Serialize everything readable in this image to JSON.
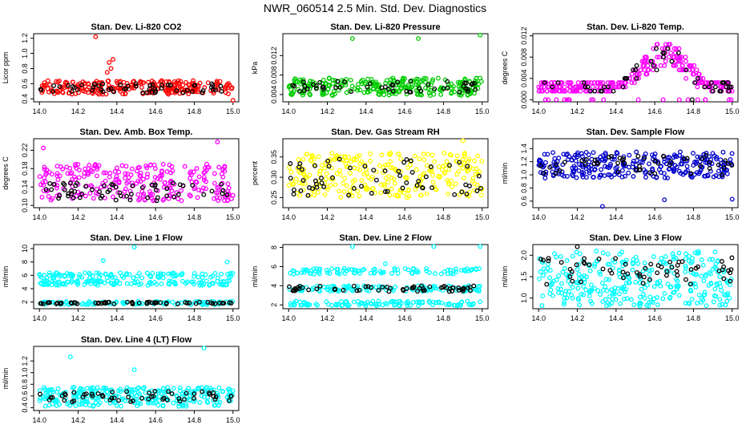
{
  "title": "NWR_060514  2.5 Min. Std. Dev. Diagnostics",
  "chart_data": [
    {
      "type": "scatter",
      "title": "Stan. Dev. Li-820 CO2",
      "ylabel": "Licor ppm",
      "xlim": [
        13.97,
        15.03
      ],
      "ylim": [
        0.36,
        1.26
      ],
      "xticks": [
        "14.0",
        "14.2",
        "14.4",
        "14.6",
        "14.8",
        "15.0"
      ],
      "yticks": [
        "0.4",
        "0.6",
        "0.8",
        "1.0",
        "1.2"
      ],
      "colors": {
        "main": "#ff0000",
        "ref": "#000000"
      },
      "series": [
        {
          "color": "#ff0000",
          "band_low": 0.46,
          "band_high": 0.64,
          "count": 240
        },
        {
          "color": "#000000",
          "band_low": 0.48,
          "band_high": 0.6,
          "count": 55
        }
      ],
      "outliers": [
        {
          "x": 14.29,
          "y": 1.22,
          "color": "#ff0000"
        },
        {
          "x": 14.38,
          "y": 0.92,
          "color": "#ff0000"
        },
        {
          "x": 14.36,
          "y": 0.88,
          "color": "#ff0000"
        },
        {
          "x": 14.37,
          "y": 0.8,
          "color": "#ff0000"
        },
        {
          "x": 14.35,
          "y": 0.75,
          "color": "#ff0000"
        },
        {
          "x": 15.0,
          "y": 0.38,
          "color": "#ff0000"
        }
      ]
    },
    {
      "type": "scatter",
      "title": "Stan. Dev. Li-820 Pressure",
      "ylabel": "kPa",
      "xlim": [
        13.97,
        15.03
      ],
      "ylim": [
        0.0025,
        0.0165
      ],
      "xticks": [
        "14.0",
        "14.2",
        "14.4",
        "14.6",
        "14.8",
        "15.0"
      ],
      "yticks": [
        "0.004",
        "0.008",
        "0.012"
      ],
      "colors": {
        "main": "#00cc00",
        "ref": "#000000"
      },
      "series": [
        {
          "color": "#00cc00",
          "band_low": 0.0038,
          "band_high": 0.0075,
          "count": 260
        },
        {
          "color": "#000000",
          "band_low": 0.0045,
          "band_high": 0.0068,
          "count": 50
        }
      ],
      "outliers": [
        {
          "x": 14.33,
          "y": 0.0155,
          "color": "#00cc00"
        },
        {
          "x": 14.67,
          "y": 0.0155,
          "color": "#00cc00"
        },
        {
          "x": 14.99,
          "y": 0.0162,
          "color": "#00cc00"
        }
      ]
    },
    {
      "type": "scatter",
      "title": "Stan. Dev. Li-820 Temp.",
      "ylabel": "degrees C",
      "xlim": [
        13.97,
        15.03
      ],
      "ylim": [
        -0.0004,
        0.0124
      ],
      "xticks": [
        "14.0",
        "14.2",
        "14.4",
        "14.6",
        "14.8",
        "15.0"
      ],
      "yticks": [
        "0.000",
        "0.004",
        "0.008",
        "0.012"
      ],
      "colors": {
        "main": "#ff00ff",
        "ref": "#000000"
      },
      "series": [
        {
          "color": "#ff00ff",
          "profile": "hump",
          "count": 300
        },
        {
          "color": "#000000",
          "profile": "hump",
          "count": 50
        }
      ],
      "outliers": []
    },
    {
      "type": "scatter",
      "title": "Stan. Dev. Amb. Box Temp.",
      "ylabel": "degrees C",
      "xlim": [
        13.97,
        15.03
      ],
      "ylim": [
        0.095,
        0.245
      ],
      "xticks": [
        "14.0",
        "14.2",
        "14.4",
        "14.6",
        "14.8",
        "15.0"
      ],
      "yticks": [
        "0.10",
        "0.14",
        "0.18",
        "0.22"
      ],
      "colors": {
        "main": "#ff00ff",
        "ref": "#000000"
      },
      "series": [
        {
          "color": "#ff00ff",
          "band_low": 0.11,
          "band_high": 0.19,
          "count": 260
        },
        {
          "color": "#000000",
          "band_low": 0.11,
          "band_high": 0.15,
          "count": 60
        }
      ],
      "outliers": [
        {
          "x": 14.92,
          "y": 0.238,
          "color": "#ff00ff"
        },
        {
          "x": 14.02,
          "y": 0.225,
          "color": "#ff00ff"
        }
      ]
    },
    {
      "type": "scatter",
      "title": "Stan. Dev. Gas Stream RH",
      "ylabel": "percent",
      "xlim": [
        13.97,
        15.03
      ],
      "ylim": [
        0.225,
        0.395
      ],
      "xticks": [
        "14.0",
        "14.2",
        "14.4",
        "14.6",
        "14.8",
        "15.0"
      ],
      "yticks": [
        "0.25",
        "0.30",
        "0.35"
      ],
      "colors": {
        "main": "#ffff00",
        "ref": "#000000"
      },
      "series": [
        {
          "color": "#ffff00",
          "band_low": 0.25,
          "band_high": 0.36,
          "count": 280
        },
        {
          "color": "#000000",
          "band_low": 0.255,
          "band_high": 0.345,
          "count": 60
        }
      ],
      "outliers": [
        {
          "x": 14.9,
          "y": 0.39,
          "color": "#ffff00"
        }
      ]
    },
    {
      "type": "scatter",
      "title": "Stan. Dev. Sample Flow",
      "ylabel": "ml/min",
      "xlim": [
        13.97,
        15.03
      ],
      "ylim": [
        0.5,
        1.55
      ],
      "xticks": [
        "14.0",
        "14.2",
        "14.4",
        "14.6",
        "14.8",
        "15.0"
      ],
      "yticks": [
        "0.6",
        "0.8",
        "1.0",
        "1.2",
        "1.4"
      ],
      "colors": {
        "main": "#0000cc",
        "ref": "#000000"
      },
      "series": [
        {
          "color": "#0000cc",
          "band_low": 0.95,
          "band_high": 1.35,
          "count": 280
        },
        {
          "color": "#000000",
          "band_low": 1.0,
          "band_high": 1.3,
          "count": 50
        }
      ],
      "outliers": [
        {
          "x": 14.33,
          "y": 0.52,
          "color": "#0000cc"
        },
        {
          "x": 14.65,
          "y": 0.62,
          "color": "#0000cc"
        },
        {
          "x": 15.0,
          "y": 0.63,
          "color": "#0000cc"
        }
      ]
    },
    {
      "type": "scatter",
      "title": "Stan. Dev. Line 1 Flow",
      "ylabel": "ml/min",
      "xlim": [
        13.97,
        15.03
      ],
      "ylim": [
        1.0,
        10.6
      ],
      "xticks": [
        "14.0",
        "14.2",
        "14.4",
        "14.6",
        "14.8",
        "15.0"
      ],
      "yticks": [
        "2",
        "4",
        "6",
        "8",
        "10"
      ],
      "colors": {
        "main": "#00ffff",
        "ref": "#000000"
      },
      "series": [
        {
          "color": "#00ffff",
          "bands": [
            [
              1.6,
              2.1
            ],
            [
              4.5,
              5.2
            ],
            [
              5.6,
              6.4
            ]
          ],
          "count": 320
        },
        {
          "color": "#000000",
          "band_low": 1.7,
          "band_high": 2.0,
          "count": 60
        }
      ],
      "outliers": [
        {
          "x": 14.49,
          "y": 10.2,
          "color": "#00ffff"
        },
        {
          "x": 14.97,
          "y": 8.0,
          "color": "#00ffff"
        },
        {
          "x": 14.33,
          "y": 8.2,
          "color": "#00ffff"
        }
      ]
    },
    {
      "type": "scatter",
      "title": "Stan. Dev. Line 2 Flow",
      "ylabel": "ml/min",
      "xlim": [
        13.97,
        15.03
      ],
      "ylim": [
        1.6,
        8.3
      ],
      "xticks": [
        "14.0",
        "14.2",
        "14.4",
        "14.6",
        "14.8",
        "15.0"
      ],
      "yticks": [
        "2",
        "4",
        "6",
        "8"
      ],
      "colors": {
        "main": "#00ffff",
        "ref": "#000000"
      },
      "series": [
        {
          "color": "#00ffff",
          "bands": [
            [
              1.9,
              2.4
            ],
            [
              3.4,
              4.0
            ],
            [
              5.2,
              5.8
            ]
          ],
          "count": 320
        },
        {
          "color": "#000000",
          "band_low": 3.4,
          "band_high": 4.0,
          "count": 60
        }
      ],
      "outliers": [
        {
          "x": 14.33,
          "y": 8.1,
          "color": "#00ffff"
        },
        {
          "x": 14.75,
          "y": 8.1,
          "color": "#00ffff"
        },
        {
          "x": 14.99,
          "y": 8.1,
          "color": "#00ffff"
        },
        {
          "x": 14.5,
          "y": 6.3,
          "color": "#00ffff"
        }
      ]
    },
    {
      "type": "scatter",
      "title": "Stan. Dev. Line 3 Flow",
      "ylabel": "ml/min",
      "xlim": [
        13.97,
        15.03
      ],
      "ylim": [
        0.75,
        2.25
      ],
      "xticks": [
        "14.0",
        "14.2",
        "14.4",
        "14.6",
        "14.8",
        "15.0"
      ],
      "yticks": [
        "1.0",
        "1.5",
        "2.0"
      ],
      "colors": {
        "main": "#00ffff",
        "ref": "#000000"
      },
      "series": [
        {
          "color": "#00ffff",
          "band_low": 0.8,
          "band_high": 2.1,
          "count": 320
        },
        {
          "color": "#000000",
          "band_low": 1.3,
          "band_high": 1.95,
          "count": 60
        }
      ],
      "outliers": [
        {
          "x": 14.2,
          "y": 2.2,
          "color": "#000000"
        }
      ]
    },
    {
      "type": "scatter",
      "title": "Stan. Dev. Line 4 (LT) Flow",
      "ylabel": "ml/min",
      "xlim": [
        13.97,
        15.03
      ],
      "ylim": [
        0.35,
        1.45
      ],
      "xticks": [
        "14.0",
        "14.2",
        "14.4",
        "14.6",
        "14.8",
        "15.0"
      ],
      "yticks": [
        "0.4",
        "0.6",
        "0.8",
        "1.0",
        "1.2"
      ],
      "colors": {
        "main": "#00ffff",
        "ref": "#000000"
      },
      "series": [
        {
          "color": "#00ffff",
          "band_low": 0.42,
          "band_high": 0.75,
          "count": 280
        },
        {
          "color": "#000000",
          "band_low": 0.5,
          "band_high": 0.68,
          "count": 55
        }
      ],
      "outliers": [
        {
          "x": 14.16,
          "y": 1.27,
          "color": "#00ffff"
        },
        {
          "x": 14.49,
          "y": 1.05,
          "color": "#00ffff"
        },
        {
          "x": 14.85,
          "y": 1.42,
          "color": "#00ffff"
        }
      ]
    }
  ]
}
